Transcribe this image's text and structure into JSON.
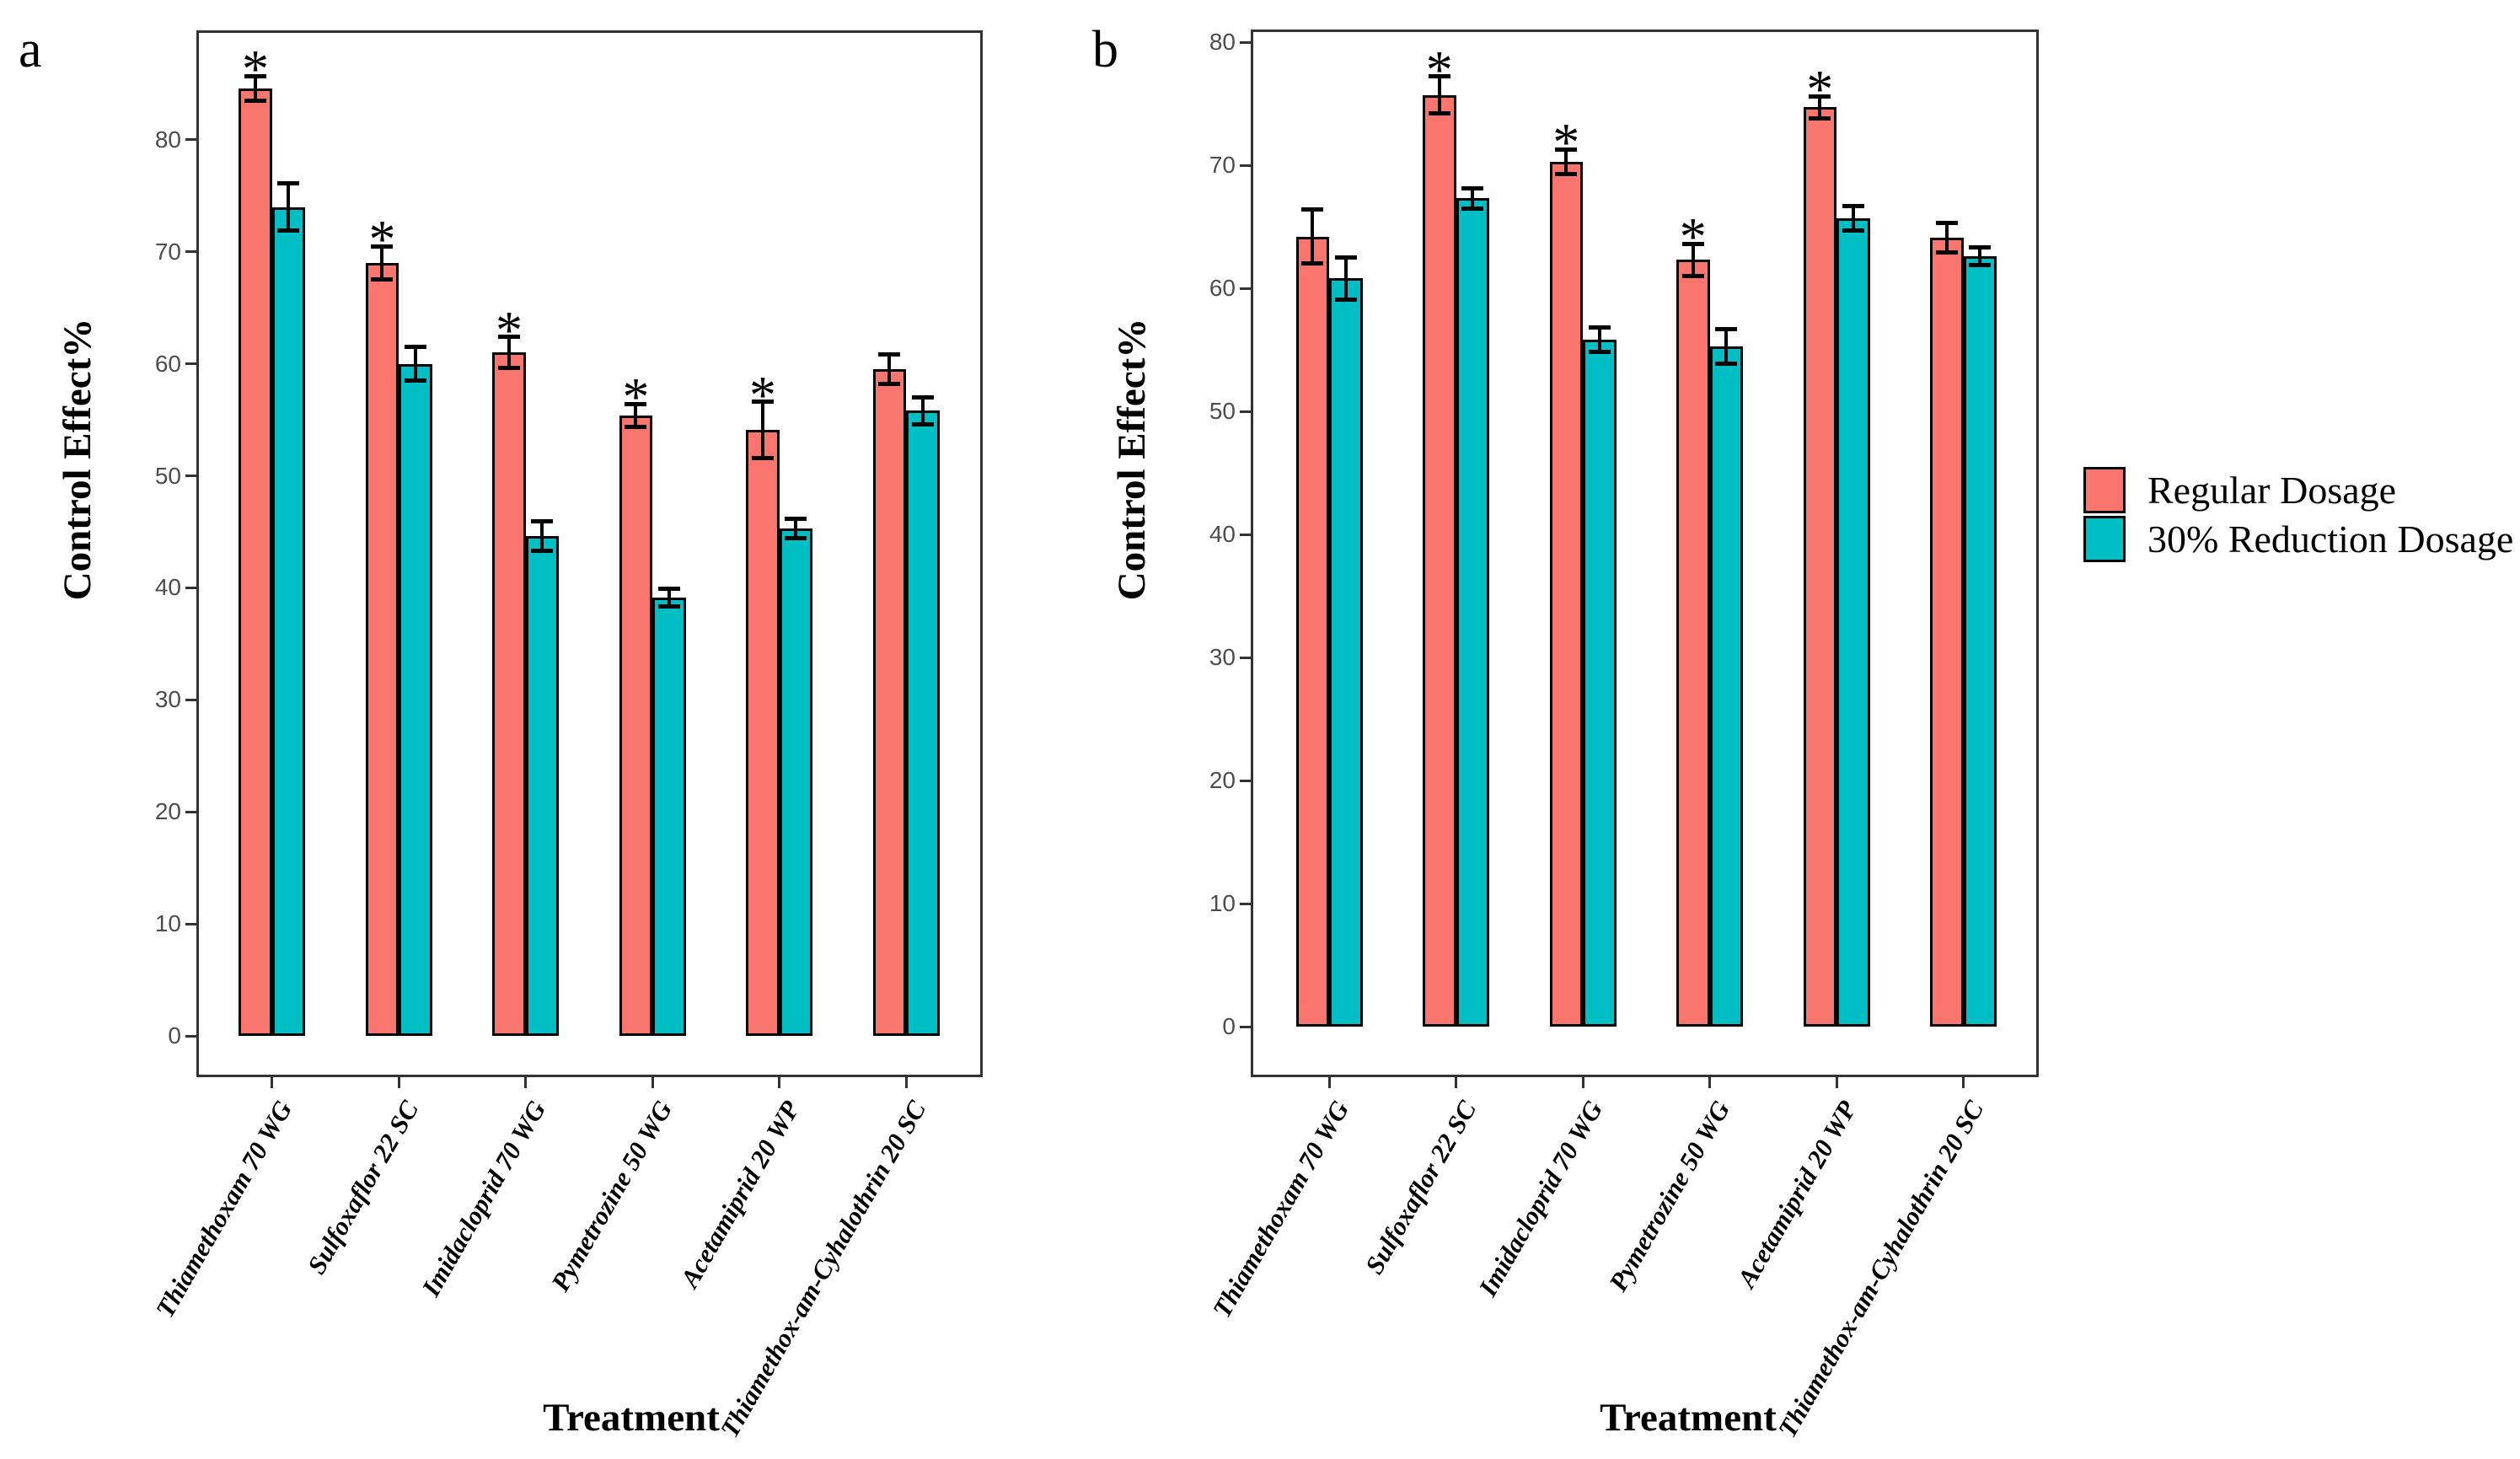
{
  "figure": {
    "panel_letters": [
      "a",
      "b"
    ],
    "y_axis_title": "Control Effect%",
    "x_axis_title": "Treatment",
    "significance_marker": "*"
  },
  "colors": {
    "regular": "#F8766D",
    "reduction": "#00BFC4",
    "bar_border": "#000000",
    "panel_border": "#333333",
    "tick_label": "#4D4D4D"
  },
  "legend": {
    "position": "right",
    "items": [
      {
        "label": "Regular Dosage",
        "color": "#F8766D"
      },
      {
        "label": "30% Reduction Dosage",
        "color": "#00BFC4"
      }
    ]
  },
  "chart_data": [
    {
      "type": "bar",
      "panel": "a",
      "title": "",
      "xlabel": "Treatment",
      "ylabel": "Control Effect%",
      "ylim": [
        -4,
        90
      ],
      "yticks": [
        0,
        10,
        20,
        30,
        40,
        50,
        60,
        70,
        80
      ],
      "grid": false,
      "categories": [
        "Thiamethoxam 70 WG",
        "Sulfoxaflor 22 SC",
        "Imidacloprid 70 WG",
        "Pymetrozine 50 WG",
        "Acetamiprid 20 WP",
        "Thiamethox-am-Cyhalothrin 20 SC"
      ],
      "series": [
        {
          "name": "Regular Dosage",
          "values": [
            84.6,
            69.0,
            61.0,
            55.4,
            54.1,
            59.5
          ],
          "errors": [
            1.1,
            1.5,
            1.4,
            1.0,
            2.5,
            1.3
          ],
          "significant": [
            true,
            true,
            true,
            true,
            true,
            false
          ]
        },
        {
          "name": "30% Reduction Dosage",
          "values": [
            74.0,
            60.0,
            44.6,
            39.1,
            45.3,
            55.8
          ],
          "errors": [
            2.1,
            1.5,
            1.3,
            0.8,
            0.9,
            1.2
          ],
          "significant": [
            false,
            false,
            false,
            false,
            false,
            false
          ]
        }
      ]
    },
    {
      "type": "bar",
      "panel": "b",
      "title": "",
      "xlabel": "Treatment",
      "ylabel": "Control Effect%",
      "ylim": [
        -4,
        81
      ],
      "yticks": [
        0,
        10,
        20,
        30,
        40,
        50,
        60,
        70,
        80
      ],
      "grid": false,
      "categories": [
        "Thiamethoxam 70 WG",
        "Sulfoxaflor 22 SC",
        "Imidacloprid 70 WG",
        "Pymetrozine 50 WG",
        "Acetamiprid 20 WP",
        "Thiamethox-am-Cyhalothrin 20 SC"
      ],
      "series": [
        {
          "name": "Regular Dosage",
          "values": [
            64.2,
            75.7,
            70.3,
            62.3,
            74.7,
            64.1
          ],
          "errors": [
            2.2,
            1.5,
            1.0,
            1.3,
            0.9,
            1.2
          ],
          "significant": [
            false,
            true,
            true,
            true,
            true,
            false
          ]
        },
        {
          "name": "30% Reduction Dosage",
          "values": [
            60.8,
            67.3,
            55.8,
            55.3,
            65.7,
            62.6
          ],
          "errors": [
            1.7,
            0.8,
            1.0,
            1.4,
            1.0,
            0.7
          ],
          "significant": [
            false,
            false,
            false,
            false,
            false,
            false
          ]
        }
      ]
    }
  ]
}
